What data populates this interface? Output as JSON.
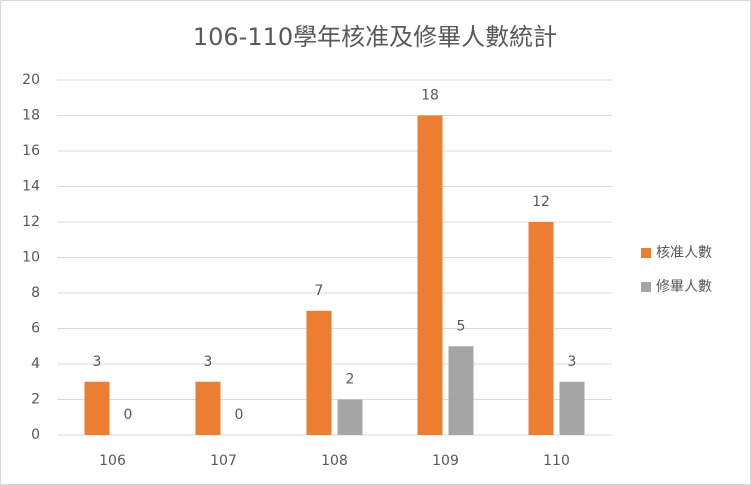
{
  "chart_data": {
    "type": "bar",
    "title": "106-110學年核准及修畢人數統計",
    "categories": [
      "106",
      "107",
      "108",
      "109",
      "110"
    ],
    "series": [
      {
        "name": "核准人數",
        "color": "#ed7d31",
        "values": [
          3,
          3,
          7,
          18,
          12
        ]
      },
      {
        "name": "修畢人數",
        "color": "#a5a5a5",
        "values": [
          0,
          0,
          2,
          5,
          3
        ]
      }
    ],
    "ylim": [
      0,
      20
    ],
    "yticks": [
      0,
      2,
      4,
      6,
      8,
      10,
      12,
      14,
      16,
      18,
      20
    ],
    "grid": true,
    "legend": "right"
  }
}
